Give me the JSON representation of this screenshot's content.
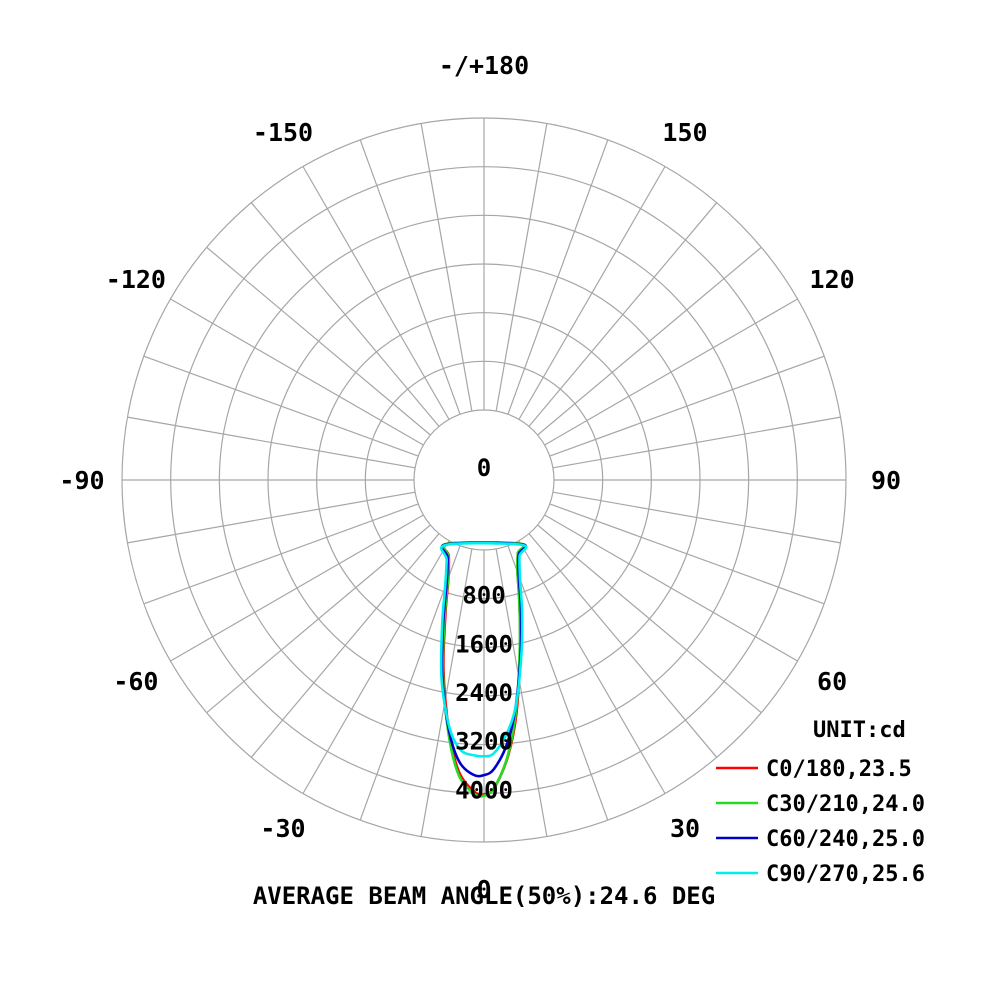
{
  "chart_data": {
    "type": "polar",
    "unit_label": "UNIT:cd",
    "caption": "AVERAGE BEAM ANGLE(50%):24.6 DEG",
    "radial_max": 4800,
    "radial_ticks": [
      {
        "value": 0,
        "label": "0"
      },
      {
        "value": 800,
        "label": "800"
      },
      {
        "value": 1600,
        "label": "1600"
      },
      {
        "value": 2400,
        "label": "2400"
      },
      {
        "value": 3200,
        "label": "3200"
      },
      {
        "value": 4000,
        "label": "4000"
      }
    ],
    "angle_labels": [
      {
        "angle": 0,
        "label": "0"
      },
      {
        "angle": 30,
        "label": "30"
      },
      {
        "angle": 60,
        "label": "60"
      },
      {
        "angle": 90,
        "label": "90"
      },
      {
        "angle": 120,
        "label": "120"
      },
      {
        "angle": 150,
        "label": "150"
      },
      {
        "angle": 180,
        "label": "-/+180"
      },
      {
        "angle": -150,
        "label": "-150"
      },
      {
        "angle": -120,
        "label": "-120"
      },
      {
        "angle": -90,
        "label": "-90"
      },
      {
        "angle": -60,
        "label": "-60"
      },
      {
        "angle": -30,
        "label": "-30"
      }
    ],
    "grid": true,
    "legend_position": "bottom-right",
    "series": [
      {
        "name": "C0/180,23.5",
        "color": "#ff0000",
        "angles": [
          -30,
          -25,
          -20,
          -16,
          -12,
          -8,
          -5,
          -2,
          0,
          2,
          5,
          8,
          12,
          16,
          20,
          25,
          30
        ],
        "values": [
          60,
          220,
          560,
          1150,
          2050,
          3000,
          3650,
          3960,
          4020,
          3900,
          3400,
          2700,
          1700,
          960,
          460,
          170,
          60
        ]
      },
      {
        "name": "C30/210,24.0",
        "color": "#22dd22",
        "angles": [
          -30,
          -25,
          -20,
          -16,
          -12,
          -8,
          -5,
          -2,
          0,
          2,
          5,
          8,
          12,
          16,
          20,
          25,
          30
        ],
        "values": [
          60,
          230,
          580,
          1200,
          2100,
          3050,
          3700,
          4000,
          4040,
          3900,
          3380,
          2650,
          1680,
          960,
          460,
          170,
          60
        ]
      },
      {
        "name": "C60/240,25.0",
        "color": "#0000cc",
        "angles": [
          -30,
          -25,
          -20,
          -16,
          -12,
          -8,
          -5,
          -2,
          0,
          2,
          5,
          8,
          12,
          16,
          20,
          25,
          30
        ],
        "values": [
          70,
          260,
          640,
          1280,
          2150,
          3000,
          3500,
          3700,
          3700,
          3600,
          3200,
          2600,
          1750,
          1050,
          520,
          200,
          70
        ]
      },
      {
        "name": "C90/270,25.6",
        "color": "#00eeee",
        "angles": [
          -30,
          -25,
          -20,
          -16,
          -12,
          -8,
          -5,
          -2,
          0,
          2,
          5,
          8,
          12,
          16,
          20,
          25,
          30
        ],
        "values": [
          80,
          300,
          720,
          1350,
          2200,
          2950,
          3300,
          3380,
          3390,
          3350,
          3050,
          2600,
          1800,
          1120,
          580,
          230,
          80
        ]
      }
    ]
  }
}
